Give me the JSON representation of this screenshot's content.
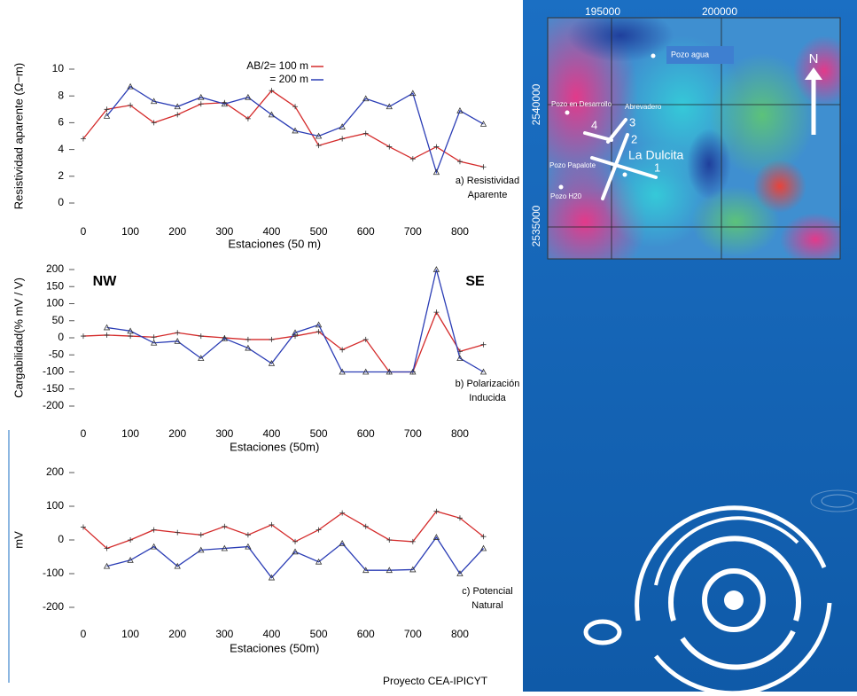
{
  "chart_data": [
    {
      "type": "line",
      "ylabel": "Resistividad aparente (Ω−m)",
      "xlabel": "Estaciones (50 m)",
      "annotation": [
        "a) Resistividad",
        "Aparente"
      ],
      "x": [
        0,
        50,
        100,
        150,
        200,
        250,
        300,
        350,
        400,
        450,
        500,
        550,
        600,
        650,
        700,
        750,
        800,
        850
      ],
      "xlim": [
        -25,
        875
      ],
      "xticks": [
        0,
        100,
        200,
        300,
        400,
        500,
        600,
        700,
        800
      ],
      "ylim": [
        0,
        10
      ],
      "yticks": [
        0,
        2,
        4,
        6,
        8,
        10
      ],
      "series": [
        {
          "name": "AB/2= 100 m",
          "color": "#d42a2a",
          "marker": "plus",
          "values": [
            4.8,
            7.0,
            7.3,
            6.0,
            6.6,
            7.4,
            7.5,
            6.3,
            8.4,
            7.2,
            4.3,
            4.8,
            5.2,
            4.2,
            3.3,
            4.2,
            3.1,
            2.7
          ]
        },
        {
          "name": "= 200 m",
          "color": "#2b3db5",
          "marker": "triangle",
          "values": [
            null,
            6.5,
            8.7,
            7.6,
            7.2,
            7.9,
            7.4,
            7.9,
            6.6,
            5.4,
            5.0,
            5.7,
            7.8,
            7.2,
            8.2,
            2.3,
            6.9,
            5.9
          ]
        }
      ]
    },
    {
      "type": "line",
      "ylabel": "Cargabilidad(% mV / V)",
      "xlabel": "Estaciones (50m)",
      "annotation": [
        "b) Polarización",
        "Inducida"
      ],
      "corner_labels": [
        "NW",
        "SE"
      ],
      "x": [
        0,
        50,
        100,
        150,
        200,
        250,
        300,
        350,
        400,
        450,
        500,
        550,
        600,
        650,
        700,
        750,
        800,
        850
      ],
      "xlim": [
        -25,
        875
      ],
      "xticks": [
        0,
        100,
        200,
        300,
        400,
        500,
        600,
        700,
        800
      ],
      "ylim": [
        -200,
        200
      ],
      "yticks": [
        -200,
        -150,
        -100,
        -50,
        0,
        50,
        100,
        150,
        200
      ],
      "series": [
        {
          "color": "#d42a2a",
          "marker": "plus",
          "values": [
            5,
            8,
            5,
            2,
            15,
            5,
            0,
            -5,
            -5,
            5,
            18,
            -35,
            -5,
            -100,
            -100,
            75,
            -40,
            -20
          ]
        },
        {
          "color": "#2b3db5",
          "marker": "triangle",
          "values": [
            null,
            30,
            20,
            -15,
            -10,
            -60,
            -2,
            -30,
            -75,
            15,
            38,
            -100,
            -100,
            -100,
            -100,
            200,
            -60,
            -100
          ]
        }
      ]
    },
    {
      "type": "line",
      "ylabel": "mV",
      "xlabel": "Estaciones (50m)",
      "annotation": [
        "c) Potencial",
        "Natural"
      ],
      "x": [
        0,
        50,
        100,
        150,
        200,
        250,
        300,
        350,
        400,
        450,
        500,
        550,
        600,
        650,
        700,
        750,
        800,
        850
      ],
      "xlim": [
        -25,
        875
      ],
      "xticks": [
        0,
        100,
        200,
        300,
        400,
        500,
        600,
        700,
        800
      ],
      "ylim": [
        -200,
        200
      ],
      "yticks": [
        -200,
        -100,
        0,
        100,
        200
      ],
      "series": [
        {
          "color": "#d42a2a",
          "marker": "plus",
          "values": [
            38,
            -25,
            0,
            30,
            22,
            15,
            40,
            15,
            45,
            -5,
            30,
            80,
            40,
            0,
            -5,
            85,
            65,
            10
          ]
        },
        {
          "color": "#2b3db5",
          "marker": "triangle",
          "values": [
            null,
            -78,
            -60,
            -20,
            -78,
            -30,
            -25,
            -20,
            -112,
            -35,
            -65,
            -10,
            -90,
            -90,
            -88,
            8,
            -100,
            -25
          ]
        }
      ]
    }
  ],
  "map": {
    "x_coords": [
      "195000",
      "200000"
    ],
    "y_coords": [
      "2540000",
      "2535000"
    ],
    "places": [
      "Pozo agua",
      "Pozo en Desarrollo",
      "Abrevadero",
      "Pozo Papalote",
      "Pozo H20",
      "La Dulcita"
    ],
    "profiles": [
      "1",
      "2",
      "3",
      "4"
    ],
    "north": "N"
  },
  "footer": "Proyecto CEA-IPICYT"
}
